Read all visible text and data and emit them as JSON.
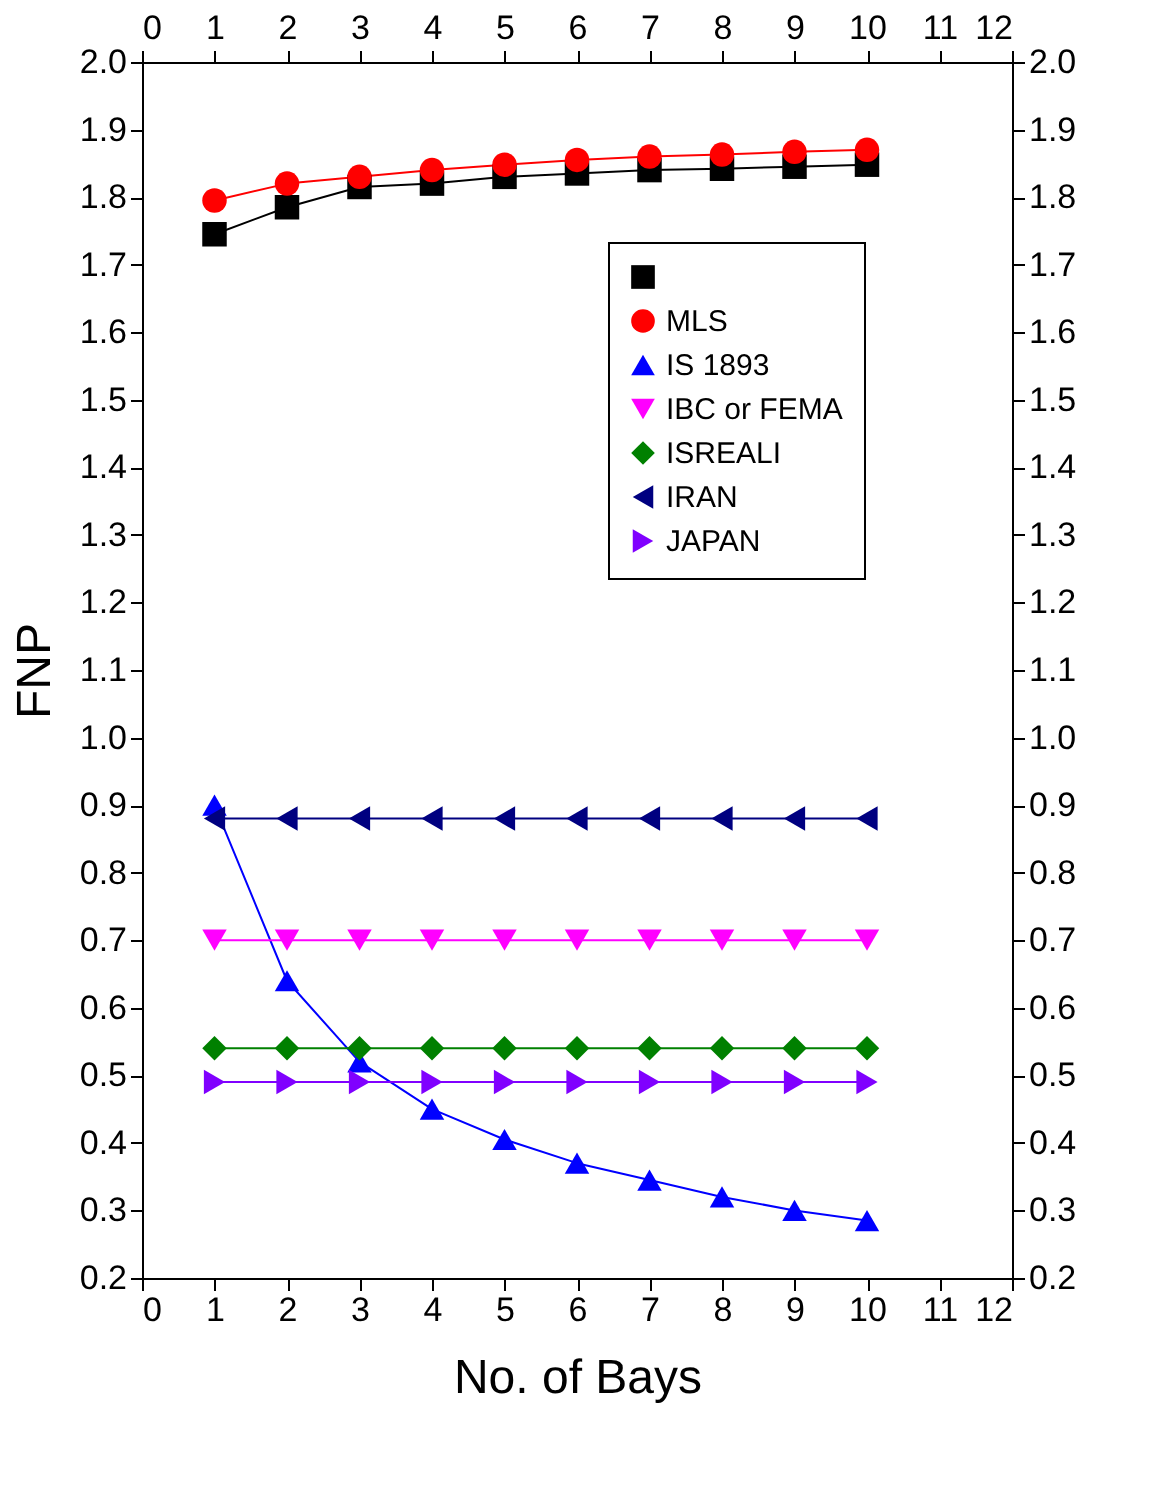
{
  "chart_data": {
    "type": "line",
    "xlabel": "No. of Bays",
    "ylabel": "FNP",
    "x": [
      1,
      2,
      3,
      4,
      5,
      6,
      7,
      8,
      9,
      10
    ],
    "series": [
      {
        "color": "#000000",
        "marker": "square",
        "values": [
          1.745,
          1.785,
          1.815,
          1.82,
          1.83,
          1.835,
          1.84,
          1.842,
          1.845,
          1.848
        ]
      },
      {
        "name": "MLS",
        "color": "#ff0000",
        "marker": "circle",
        "values": [
          1.795,
          1.82,
          1.83,
          1.84,
          1.848,
          1.855,
          1.86,
          1.863,
          1.867,
          1.87
        ]
      },
      {
        "name": "IS 1893",
        "color": "#0000ff",
        "marker": "triangle-up",
        "values": [
          0.9,
          0.64,
          0.52,
          0.45,
          0.405,
          0.37,
          0.345,
          0.32,
          0.3,
          0.285
        ]
      },
      {
        "name": "IBC or FEMA",
        "color": "#ff00ff",
        "marker": "triangle-down",
        "values": [
          0.7,
          0.7,
          0.7,
          0.7,
          0.7,
          0.7,
          0.7,
          0.7,
          0.7,
          0.7
        ]
      },
      {
        "name": "ISREALI",
        "color": "#008000",
        "marker": "diamond",
        "values": [
          0.54,
          0.54,
          0.54,
          0.54,
          0.54,
          0.54,
          0.54,
          0.54,
          0.54,
          0.54
        ]
      },
      {
        "name": "IRAN",
        "color": "#000080",
        "marker": "triangle-left",
        "values": [
          0.88,
          0.88,
          0.88,
          0.88,
          0.88,
          0.88,
          0.88,
          0.88,
          0.88,
          0.88
        ]
      },
      {
        "name": "JAPAN",
        "color": "#8000ff",
        "marker": "triangle-right",
        "values": [
          0.49,
          0.49,
          0.49,
          0.49,
          0.49,
          0.49,
          0.49,
          0.49,
          0.49,
          0.49
        ]
      }
    ],
    "xlim": [
      0,
      12
    ],
    "xticks": [
      0,
      1,
      2,
      3,
      4,
      5,
      6,
      7,
      8,
      9,
      10,
      11,
      12
    ],
    "x2lim": [
      0,
      12
    ],
    "x2ticks": [
      0,
      1,
      2,
      3,
      4,
      5,
      6,
      7,
      8,
      9,
      10,
      11,
      12
    ],
    "ylim": [
      0.2,
      2
    ],
    "yticks": [
      0.2,
      0.3,
      0.4,
      0.5,
      0.6,
      0.7,
      0.8,
      0.9,
      {
        "value": 1,
        "label": "1.0"
      },
      1.1,
      1.2,
      1.3,
      1.4,
      1.5,
      1.6,
      1.7,
      1.8,
      1.9,
      {
        "value": 2,
        "label": "2.0"
      }
    ],
    "y2lim": [
      0.2,
      2
    ],
    "y2ticks": [
      0.2,
      0.3,
      0.4,
      0.5,
      0.6,
      0.7,
      0.8,
      0.9,
      {
        "value": 1,
        "label": "1.0"
      },
      1.1,
      1.2,
      1.3,
      1.4,
      1.5,
      1.6,
      1.7,
      1.8,
      1.9,
      {
        "value": 2,
        "label": "2.0"
      }
    ],
    "grid": false,
    "legend": "top right"
  }
}
